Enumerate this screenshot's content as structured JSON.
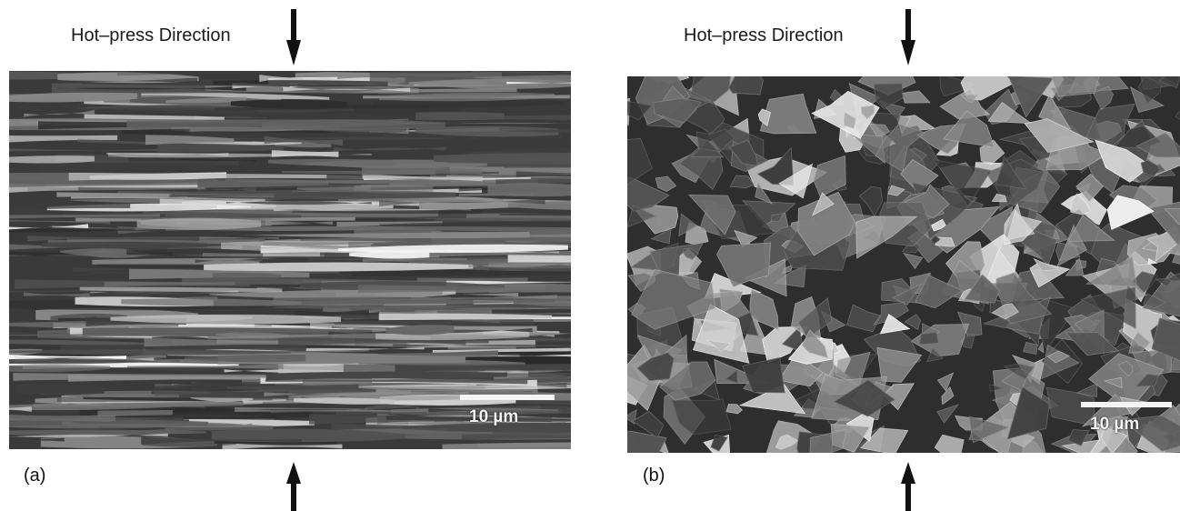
{
  "panels": [
    {
      "label": "(a)",
      "direction_label": "Hot–press Direction",
      "scale_bar": "10 µm",
      "texture": "layered"
    },
    {
      "label": "(b)",
      "direction_label": "Hot–press Direction",
      "scale_bar": "10 µm",
      "texture": "random"
    }
  ],
  "colors": {
    "arrow": "#111111",
    "scale_bar": "#f4f4f4",
    "background": "#ffffff"
  }
}
